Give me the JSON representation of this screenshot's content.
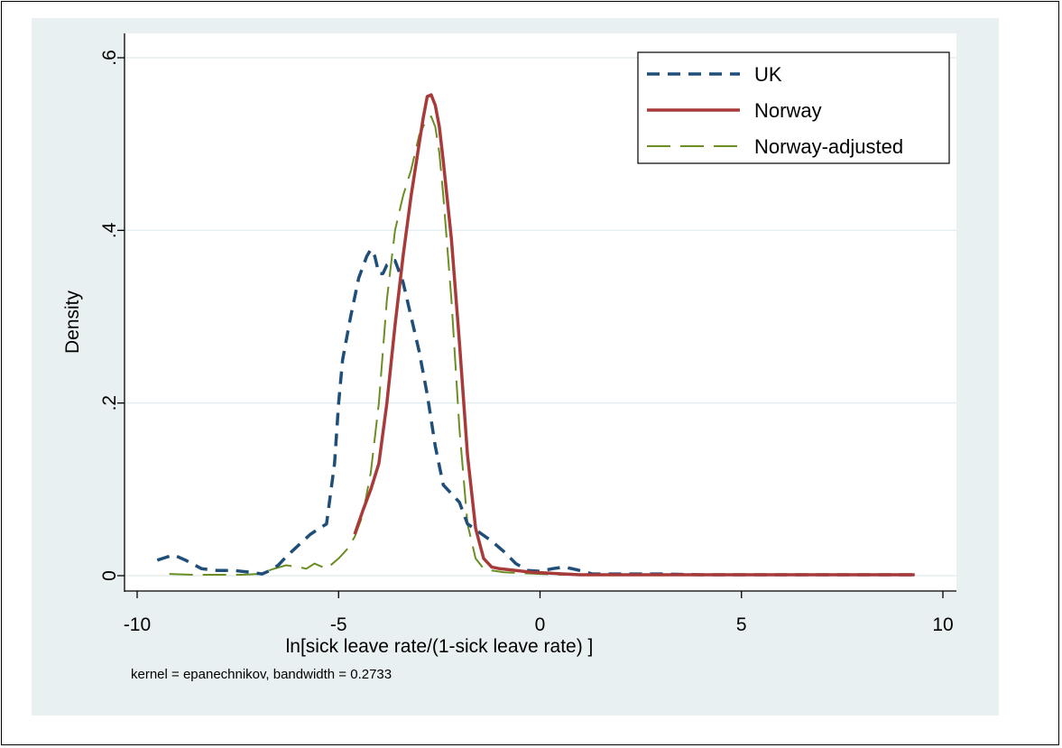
{
  "chart_data": {
    "type": "line",
    "title": "",
    "xlabel": "ln[sick leave rate/(1-sick leave rate) ]",
    "ylabel": "Density",
    "note": "kernel = epanechnikov, bandwidth = 0.2733",
    "xlim": [
      -10,
      10
    ],
    "ylim": [
      0,
      0.6
    ],
    "x_ticks": [
      -10,
      -5,
      0,
      5,
      10
    ],
    "x_tick_labels": [
      "-10",
      "-5",
      "0",
      "5",
      "10"
    ],
    "y_ticks": [
      0,
      0.2,
      0.4,
      0.6
    ],
    "y_tick_labels": [
      "0",
      ".2",
      ".4",
      ".6"
    ],
    "grid": "horizontal",
    "legend_position": "top-right",
    "series": [
      {
        "name": "UK",
        "color": "#1f4e79",
        "dash": "dashed",
        "x": [
          -9.5,
          -9.1,
          -8.8,
          -8.4,
          -8.0,
          -7.6,
          -7.2,
          -6.9,
          -6.7,
          -6.5,
          -6.3,
          -6.0,
          -5.7,
          -5.3,
          -5.1,
          -5.0,
          -4.9,
          -4.7,
          -4.5,
          -4.3,
          -4.2,
          -4.1,
          -4.0,
          -3.9,
          -3.8,
          -3.6,
          -3.4,
          -3.2,
          -3.0,
          -2.8,
          -2.6,
          -2.4,
          -2.2,
          -2.0,
          -1.8,
          -1.5,
          -1.2,
          -0.9,
          -0.6,
          -0.3,
          0.0,
          0.3,
          0.6,
          0.9,
          1.3,
          2.0,
          3.0,
          4.0,
          6.0,
          8.0,
          9.3
        ],
        "y": [
          0.018,
          0.024,
          0.018,
          0.008,
          0.006,
          0.006,
          0.004,
          0.002,
          0.006,
          0.012,
          0.022,
          0.035,
          0.048,
          0.06,
          0.13,
          0.2,
          0.25,
          0.3,
          0.345,
          0.37,
          0.378,
          0.37,
          0.35,
          0.35,
          0.36,
          0.365,
          0.34,
          0.3,
          0.26,
          0.21,
          0.15,
          0.105,
          0.095,
          0.085,
          0.06,
          0.05,
          0.04,
          0.028,
          0.014,
          0.006,
          0.005,
          0.008,
          0.01,
          0.007,
          0.002,
          0.002,
          0.002,
          0.001,
          0.001,
          0.001,
          0.001
        ]
      },
      {
        "name": "Norway",
        "color": "#a83a3a",
        "dash": "solid",
        "x": [
          -4.6,
          -4.4,
          -4.2,
          -4.0,
          -3.8,
          -3.6,
          -3.4,
          -3.2,
          -3.0,
          -2.9,
          -2.8,
          -2.7,
          -2.6,
          -2.5,
          -2.4,
          -2.2,
          -2.0,
          -1.8,
          -1.6,
          -1.4,
          -1.2,
          -1.0,
          -0.6,
          -0.2,
          0.2,
          0.6,
          1.0,
          2.0,
          4.0,
          6.0,
          8.0,
          9.3
        ],
        "y": [
          0.048,
          0.075,
          0.1,
          0.13,
          0.2,
          0.29,
          0.37,
          0.44,
          0.5,
          0.53,
          0.555,
          0.557,
          0.545,
          0.52,
          0.48,
          0.39,
          0.27,
          0.14,
          0.055,
          0.02,
          0.01,
          0.008,
          0.006,
          0.004,
          0.003,
          0.002,
          0.001,
          0.001,
          0.001,
          0.001,
          0.001,
          0.001
        ]
      },
      {
        "name": "Norway-adjusted",
        "color": "#6b8e23",
        "dash": "longdash",
        "x": [
          -9.2,
          -8.6,
          -8.0,
          -7.4,
          -7.0,
          -6.6,
          -6.3,
          -6.0,
          -5.8,
          -5.6,
          -5.3,
          -5.0,
          -4.8,
          -4.6,
          -4.4,
          -4.2,
          -4.0,
          -3.8,
          -3.6,
          -3.4,
          -3.2,
          -3.0,
          -2.8,
          -2.7,
          -2.6,
          -2.5,
          -2.4,
          -2.2,
          -2.0,
          -1.8,
          -1.6,
          -1.4,
          -1.2,
          -0.9,
          -0.5,
          0.0,
          0.5,
          1.0,
          2.0,
          4.0,
          6.0,
          8.0,
          9.3
        ],
        "y": [
          0.002,
          0.001,
          0.001,
          0.001,
          0.002,
          0.008,
          0.012,
          0.01,
          0.008,
          0.014,
          0.008,
          0.02,
          0.03,
          0.045,
          0.07,
          0.12,
          0.2,
          0.32,
          0.4,
          0.44,
          0.47,
          0.51,
          0.53,
          0.532,
          0.52,
          0.49,
          0.44,
          0.32,
          0.17,
          0.06,
          0.02,
          0.008,
          0.006,
          0.004,
          0.003,
          0.002,
          0.001,
          0.001,
          0.001,
          0.001,
          0.001,
          0.001,
          0.001
        ]
      }
    ]
  }
}
